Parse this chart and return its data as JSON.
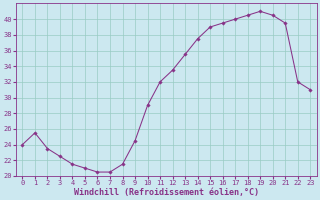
{
  "x": [
    0,
    1,
    2,
    3,
    4,
    5,
    6,
    7,
    8,
    9,
    10,
    11,
    12,
    13,
    14,
    15,
    16,
    17,
    18,
    19,
    20,
    21,
    22,
    23
  ],
  "y": [
    24,
    25.5,
    23.5,
    22.5,
    21.5,
    21,
    20.5,
    20.5,
    21.5,
    24.5,
    29,
    32,
    33.5,
    35.5,
    37.5,
    39,
    39.5,
    40,
    40.5,
    41,
    40.5,
    39.5,
    32,
    31
  ],
  "line_color": "#883388",
  "marker_color": "#883388",
  "bg_color": "#cce8f0",
  "grid_color": "#99ccc4",
  "xlabel": "Windchill (Refroidissement éolien,°C)",
  "xlabel_color": "#883388",
  "ylim": [
    20,
    42
  ],
  "xlim": [
    -0.5,
    23.5
  ],
  "yticks": [
    20,
    22,
    24,
    26,
    28,
    30,
    32,
    34,
    36,
    38,
    40
  ],
  "xticks": [
    0,
    1,
    2,
    3,
    4,
    5,
    6,
    7,
    8,
    9,
    10,
    11,
    12,
    13,
    14,
    15,
    16,
    17,
    18,
    19,
    20,
    21,
    22,
    23
  ],
  "tick_color": "#883388",
  "tick_fontsize": 5.0,
  "xlabel_fontsize": 6.0,
  "spine_color": "#883388"
}
